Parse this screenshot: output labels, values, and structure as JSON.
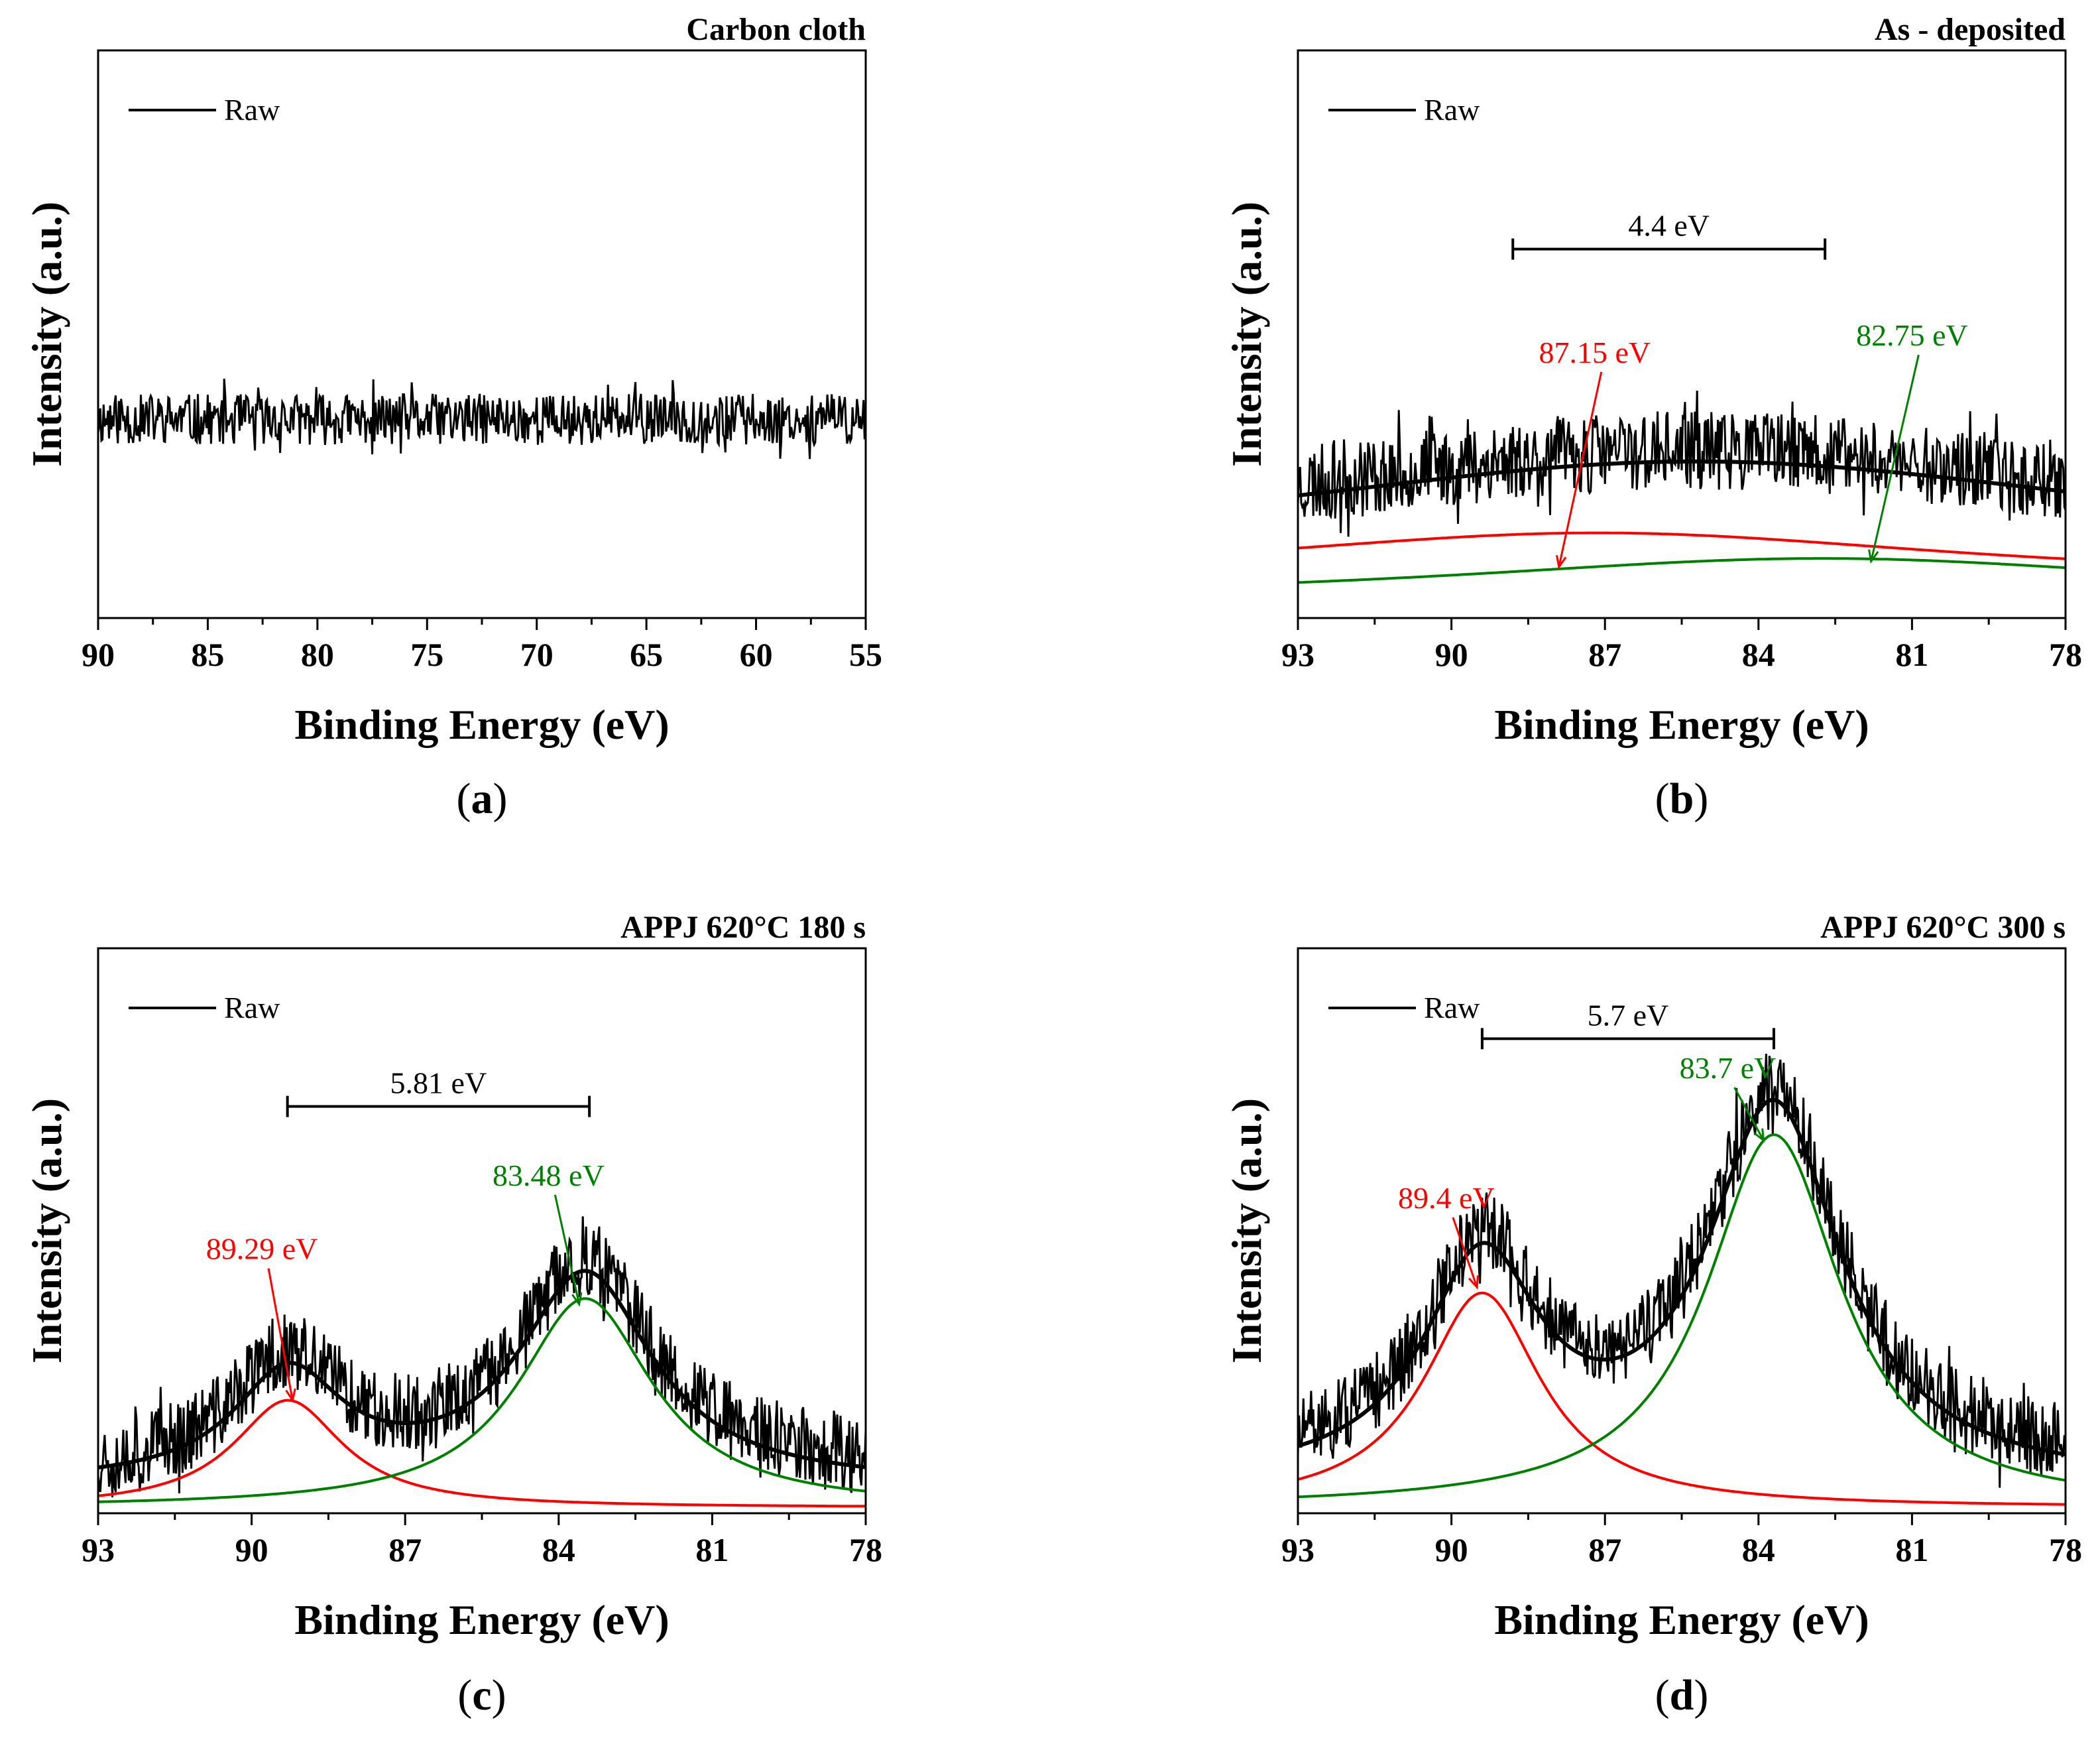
{
  "chart_data": [
    {
      "panel": "a",
      "type": "line",
      "title": "Carbon cloth",
      "xlabel": "Binding Energy (eV)",
      "ylabel": "Intensity (a.u.)",
      "xlim": [
        90,
        55
      ],
      "xticks": [
        90,
        85,
        80,
        75,
        70,
        65,
        60,
        55
      ],
      "ylim": [
        0,
        1
      ],
      "legend": [
        "Raw"
      ],
      "series": [
        {
          "name": "Raw",
          "color": "#000000",
          "kind": "noise",
          "baseline": 0.35,
          "noise": 0.045,
          "seed": 11
        }
      ],
      "annotations": []
    },
    {
      "panel": "b",
      "type": "line",
      "title": "As - deposited",
      "xlabel": "Binding Energy (eV)",
      "ylabel": "Intensity (a.u.)",
      "xlim": [
        93,
        78
      ],
      "xticks": [
        93,
        90,
        87,
        84,
        81,
        78
      ],
      "ylim": [
        0,
        1
      ],
      "legend": [
        "Raw"
      ],
      "series": [
        {
          "name": "Raw",
          "color": "#000000",
          "kind": "noise",
          "noise": 0.07,
          "seed": 23
        },
        {
          "name": "Fit 1",
          "color": "#ff0000",
          "kind": "peak",
          "center": 87.15,
          "amp": 0.09,
          "width": 9,
          "offset": 0.05
        },
        {
          "name": "Fit 2",
          "color": "#008000",
          "kind": "peak",
          "center": 82.75,
          "amp": 0.075,
          "width": 9,
          "offset": 0.02
        },
        {
          "name": "Envelope",
          "color": "#000000",
          "kind": "sum"
        }
      ],
      "annotations": [
        {
          "kind": "bracket",
          "from": 88.8,
          "to": 82.7,
          "y": 0.65,
          "text": "4.4 eV"
        },
        {
          "kind": "label",
          "text": "87.15 eV",
          "color": "#ff0000",
          "x": 87.2,
          "y": 0.45,
          "tx": 87.9,
          "ty": 0.09
        },
        {
          "kind": "label",
          "text": "82.75 eV",
          "color": "#008000",
          "x": 81.0,
          "y": 0.48,
          "tx": 81.8,
          "ty": 0.1
        }
      ]
    },
    {
      "panel": "c",
      "type": "line",
      "title": "APPJ 620°C 180 s",
      "xlabel": "Binding Energy (eV)",
      "ylabel": "Intensity (a.u.)",
      "xlim": [
        93,
        78
      ],
      "xticks": [
        93,
        90,
        87,
        84,
        81,
        78
      ],
      "ylim": [
        0,
        1
      ],
      "legend": [
        "Raw"
      ],
      "series": [
        {
          "name": "Raw",
          "color": "#000000",
          "kind": "noise",
          "noise": 0.07,
          "seed": 37
        },
        {
          "name": "Fit 1",
          "color": "#ff0000",
          "kind": "peak",
          "center": 89.29,
          "amp": 0.19,
          "width": 1.3,
          "offset": 0
        },
        {
          "name": "Fit 2",
          "color": "#008000",
          "kind": "peak",
          "center": 83.48,
          "amp": 0.37,
          "width": 1.6,
          "offset": 0
        },
        {
          "name": "Envelope",
          "color": "#000000",
          "kind": "sum"
        }
      ],
      "annotations": [
        {
          "kind": "bracket",
          "from": 89.3,
          "to": 83.4,
          "y": 0.72,
          "text": "5.81 eV"
        },
        {
          "kind": "label",
          "text": "89.29 eV",
          "color": "#ff0000",
          "x": 89.8,
          "y": 0.45,
          "tx": 89.2,
          "ty": 0.2
        },
        {
          "kind": "label",
          "text": "83.48 eV",
          "color": "#008000",
          "x": 84.2,
          "y": 0.58,
          "tx": 83.6,
          "ty": 0.37
        }
      ]
    },
    {
      "panel": "d",
      "type": "line",
      "title": "APPJ 620°C 300 s",
      "xlabel": "Binding Energy (eV)",
      "ylabel": "Intensity (a.u.)",
      "xlim": [
        93,
        78
      ],
      "xticks": [
        93,
        90,
        87,
        84,
        81,
        78
      ],
      "ylim": [
        0,
        1
      ],
      "legend": [
        "Raw"
      ],
      "series": [
        {
          "name": "Raw",
          "color": "#000000",
          "kind": "noise",
          "noise": 0.07,
          "seed": 51
        },
        {
          "name": "Fit 1",
          "color": "#ff0000",
          "kind": "peak",
          "center": 89.4,
          "amp": 0.38,
          "width": 1.4,
          "offset": 0
        },
        {
          "name": "Fit 2",
          "color": "#008000",
          "kind": "peak",
          "center": 83.7,
          "amp": 0.66,
          "width": 1.6,
          "offset": 0
        },
        {
          "name": "Envelope",
          "color": "#000000",
          "kind": "sum"
        }
      ],
      "annotations": [
        {
          "kind": "bracket",
          "from": 89.4,
          "to": 83.7,
          "y": 0.84,
          "text": "5.7 eV"
        },
        {
          "kind": "label",
          "text": "89.4 eV",
          "color": "#ff0000",
          "x": 90.1,
          "y": 0.54,
          "tx": 89.5,
          "ty": 0.4
        },
        {
          "kind": "label",
          "text": "83.7 eV",
          "color": "#008000",
          "x": 84.6,
          "y": 0.77,
          "tx": 83.9,
          "ty": 0.66
        }
      ]
    }
  ],
  "panel_labels": {
    "a": {
      "open": "(",
      "letter": "a",
      "close": ")"
    },
    "b": {
      "open": "(",
      "letter": "b",
      "close": ")"
    },
    "c": {
      "open": "(",
      "letter": "c",
      "close": ")"
    },
    "d": {
      "open": "(",
      "letter": "d",
      "close": ")"
    }
  }
}
